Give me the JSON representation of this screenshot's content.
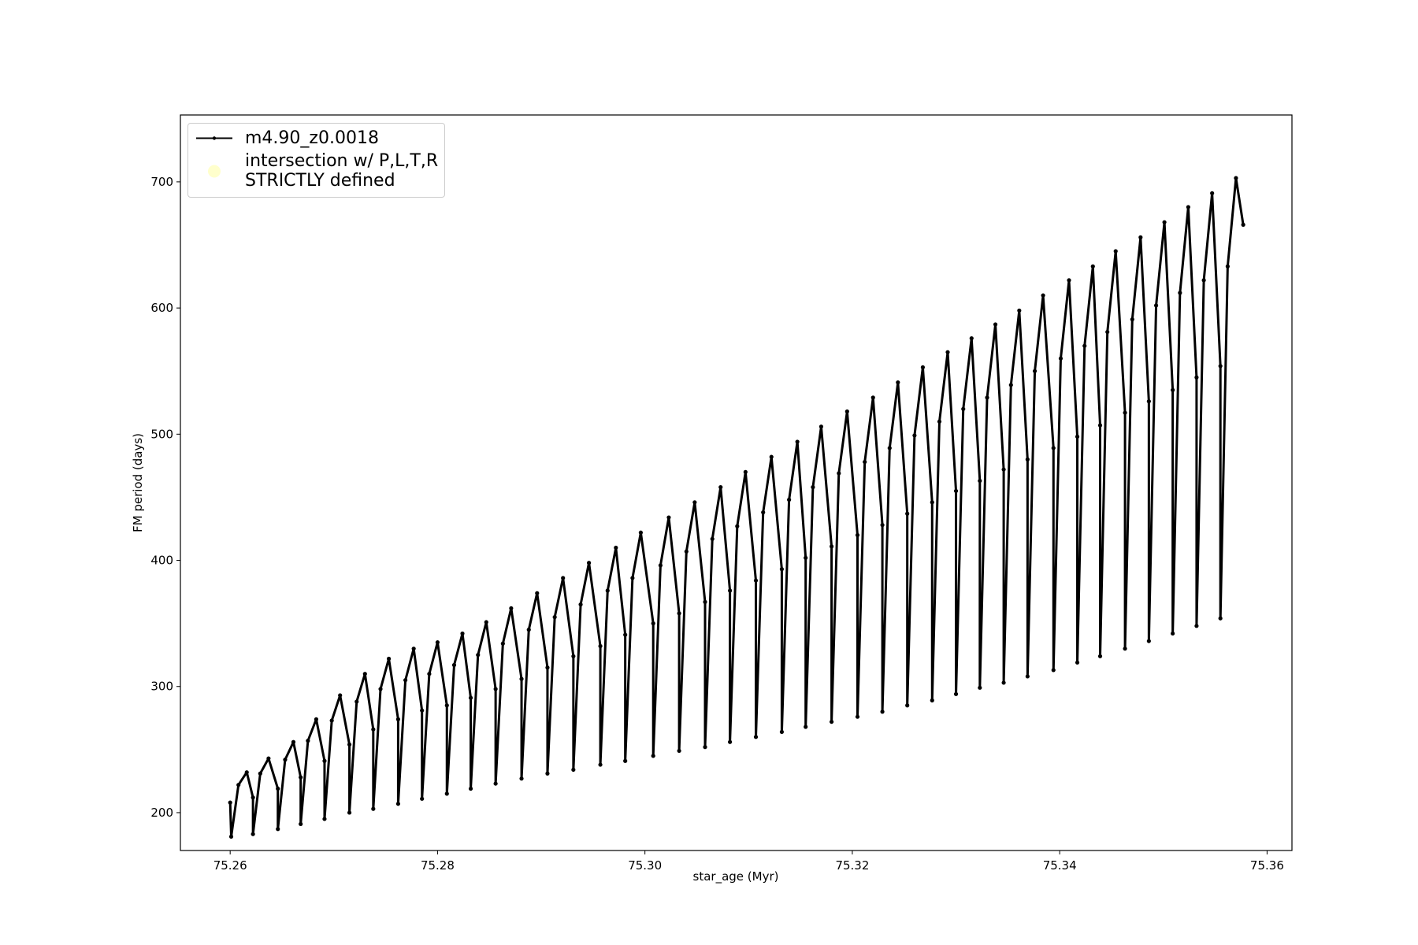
{
  "chart_data": {
    "type": "line",
    "xlabel": "star_age (Myr)",
    "ylabel": "FM period (days)",
    "xlim": [
      75.2552,
      75.3624
    ],
    "ylim": [
      170,
      753
    ],
    "xticks": [
      75.26,
      75.28,
      {
        "value": 75.3,
        "label": "75.30"
      },
      75.32,
      75.34,
      75.36
    ],
    "yticks": [
      200,
      300,
      400,
      500,
      600,
      700
    ],
    "legend": "upper left",
    "series": [
      {
        "name": "m4.90_z0.0018",
        "color": "#000000",
        "marker": "dot",
        "x": [
          75.26,
          75.2601,
          75.2608,
          75.2616,
          75.2622,
          75.2622,
          75.2629,
          75.2637,
          75.2646,
          75.2646,
          75.2653,
          75.2661,
          75.2668,
          75.2668,
          75.2675,
          75.2683,
          75.2691,
          75.2691,
          75.2698,
          75.2706,
          75.2715,
          75.2715,
          75.2722,
          75.273,
          75.2738,
          75.2738,
          75.2745,
          75.2753,
          75.2762,
          75.2762,
          75.2769,
          75.2777,
          75.2785,
          75.2785,
          75.2792,
          75.28,
          75.2809,
          75.2809,
          75.2816,
          75.2824,
          75.2832,
          75.2832,
          75.2839,
          75.2847,
          75.2856,
          75.2856,
          75.2863,
          75.2871,
          75.2881,
          75.2881,
          75.2888,
          75.2896,
          75.2906,
          75.2906,
          75.2913,
          75.2921,
          75.2931,
          75.2931,
          75.2938,
          75.2946,
          75.2957,
          75.2957,
          75.2964,
          75.2972,
          75.2981,
          75.2981,
          75.2988,
          75.2996,
          75.3008,
          75.3008,
          75.3015,
          75.3023,
          75.3033,
          75.3033,
          75.304,
          75.3048,
          75.3058,
          75.3058,
          75.3065,
          75.3073,
          75.3082,
          75.3082,
          75.3089,
          75.3097,
          75.3107,
          75.3107,
          75.3114,
          75.3122,
          75.3132,
          75.3132,
          75.3139,
          75.3147,
          75.3155,
          75.3155,
          75.3162,
          75.317,
          75.318,
          75.318,
          75.3187,
          75.3195,
          75.3205,
          75.3205,
          75.3212,
          75.322,
          75.3229,
          75.3229,
          75.3236,
          75.3244,
          75.3253,
          75.3253,
          75.326,
          75.3268,
          75.3277,
          75.3277,
          75.3284,
          75.3292,
          75.33,
          75.33,
          75.3307,
          75.3315,
          75.3323,
          75.3323,
          75.333,
          75.3338,
          75.3346,
          75.3346,
          75.3353,
          75.3361,
          75.3369,
          75.3369,
          75.3376,
          75.3384,
          75.3394,
          75.3394,
          75.3401,
          75.3409,
          75.3417,
          75.3417,
          75.3424,
          75.3432,
          75.3439,
          75.3439,
          75.3446,
          75.3454,
          75.3463,
          75.3463,
          75.347,
          75.3478,
          75.3486,
          75.3486,
          75.3493,
          75.3501,
          75.3509,
          75.3509,
          75.3516,
          75.3524,
          75.3532,
          75.3532,
          75.3539,
          75.3547,
          75.3555,
          75.3555,
          75.3562,
          75.357,
          75.3577
        ],
        "values": [
          208,
          181,
          222,
          232,
          212,
          183,
          231,
          243,
          219,
          187,
          242,
          256,
          228,
          191,
          257,
          274,
          241,
          195,
          273,
          293,
          254,
          200,
          288,
          310,
          266,
          203,
          298,
          322,
          274,
          207,
          305,
          330,
          281,
          211,
          310,
          335,
          285,
          215,
          317,
          342,
          291,
          219,
          325,
          351,
          298,
          223,
          334,
          362,
          306,
          227,
          345,
          374,
          315,
          231,
          355,
          386,
          324,
          234,
          365,
          398,
          332,
          238,
          376,
          410,
          341,
          241,
          386,
          422,
          350,
          245,
          396,
          434,
          358,
          249,
          407,
          446,
          367,
          252,
          417,
          458,
          376,
          256,
          427,
          470,
          384,
          260,
          438,
          482,
          393,
          264,
          448,
          494,
          402,
          268,
          458,
          506,
          411,
          272,
          469,
          518,
          420,
          276,
          478,
          529,
          428,
          280,
          489,
          541,
          437,
          285,
          499,
          553,
          446,
          289,
          510,
          565,
          455,
          294,
          520,
          576,
          463,
          299,
          529,
          587,
          472,
          303,
          539,
          598,
          480,
          308,
          550,
          610,
          489,
          313,
          560,
          622,
          498,
          319,
          570,
          633,
          507,
          324,
          581,
          645,
          517,
          330,
          591,
          656,
          526,
          336,
          602,
          668,
          535,
          342,
          612,
          680,
          545,
          348,
          622,
          691,
          554,
          354,
          633,
          703,
          666
        ]
      },
      {
        "name": "intersection w/ P,L,T,R\nSTRICTLY defined",
        "color": "#ffffcc",
        "marker": "circle",
        "x": [],
        "values": []
      }
    ]
  }
}
